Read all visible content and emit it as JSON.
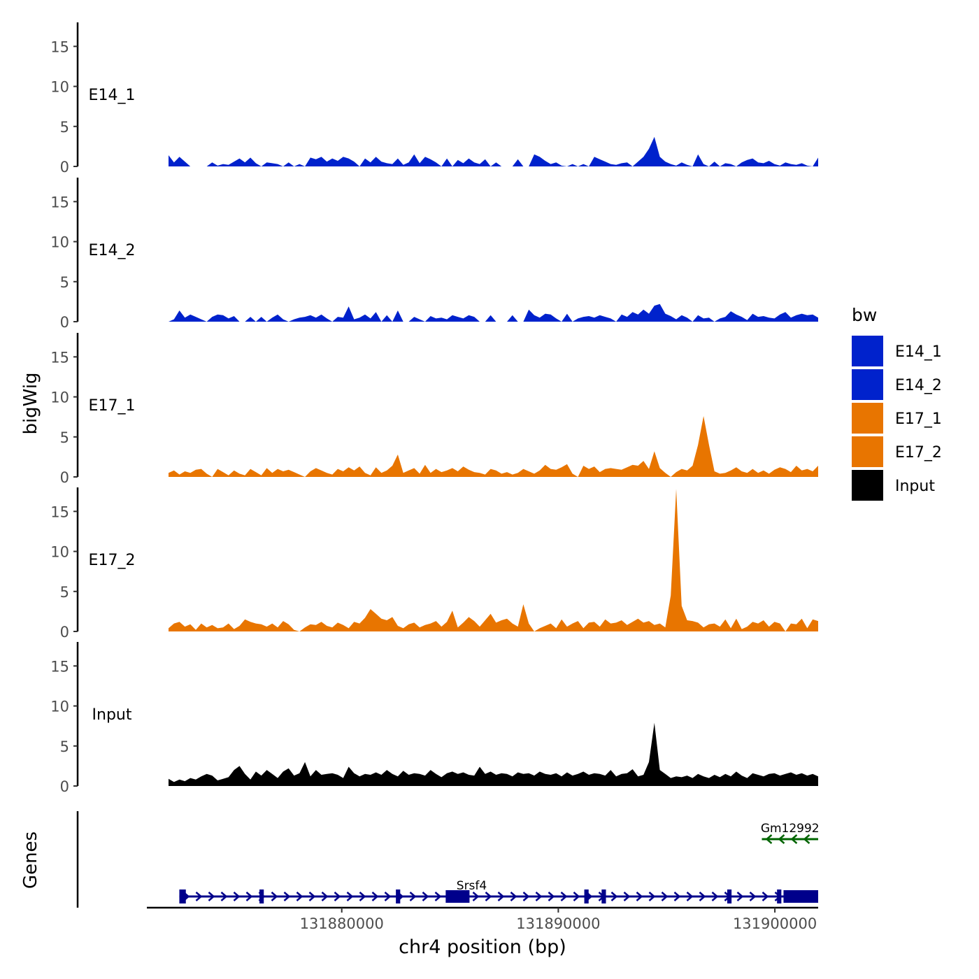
{
  "chart_data": {
    "type": "area",
    "ylabel": "bigWig",
    "genes_label": "Genes",
    "xlabel": "chr4 position (bp)",
    "ylim": [
      0,
      18
    ],
    "yticks": [
      0,
      5,
      10,
      15
    ],
    "xlim": [
      131871000,
      131902000
    ],
    "xticks": [
      131880000,
      131890000,
      131900000
    ],
    "xtick_labels": [
      "131880000",
      "131890000",
      "131900000"
    ],
    "legend": {
      "title": "bw",
      "position": "right",
      "entries": [
        {
          "label": "E14_1",
          "color": "#0022CC"
        },
        {
          "label": "E14_2",
          "color": "#0022CC"
        },
        {
          "label": "E17_1",
          "color": "#E87500"
        },
        {
          "label": "E17_2",
          "color": "#E87500"
        },
        {
          "label": "Input",
          "color": "#000000"
        }
      ]
    },
    "track_x": {
      "start": 131872000,
      "end": 131902000,
      "bins": 120
    },
    "tracks": [
      {
        "name": "E14_1",
        "color": "#0022CC",
        "values": [
          1.4,
          0.5,
          1.2,
          0.6,
          0,
          0,
          0,
          0,
          0.5,
          0.1,
          0.3,
          0.2,
          0.6,
          1.0,
          0.5,
          1.1,
          0.4,
          0,
          0.5,
          0.4,
          0.3,
          0,
          0.5,
          0,
          0.3,
          0,
          1.1,
          0.9,
          1.2,
          0.6,
          1.0,
          0.7,
          1.2,
          1.0,
          0.6,
          0,
          1.0,
          0.5,
          1.2,
          0.6,
          0.4,
          0.3,
          1.0,
          0.2,
          0.5,
          1.5,
          0.4,
          1.2,
          0.9,
          0.5,
          0,
          1.0,
          0,
          0.8,
          0.4,
          1.0,
          0.5,
          0.3,
          0.9,
          0,
          0.5,
          0,
          0,
          0,
          0.9,
          0,
          0,
          1.5,
          1.2,
          0.7,
          0.3,
          0.5,
          0.1,
          0,
          0.3,
          0,
          0.3,
          0,
          1.2,
          0.9,
          0.6,
          0.3,
          0.2,
          0.4,
          0.5,
          0,
          0.6,
          1.2,
          2.2,
          3.7,
          1.2,
          0.6,
          0.3,
          0.1,
          0.5,
          0.2,
          0,
          1.5,
          0.3,
          0,
          0.6,
          0,
          0.4,
          0.3,
          0,
          0.5,
          0.8,
          1.0,
          0.5,
          0.4,
          0.7,
          0.3,
          0.1,
          0.5,
          0.3,
          0.2,
          0.4,
          0.1,
          0,
          1.1
        ]
      },
      {
        "name": "E14_2",
        "color": "#0022CC",
        "values": [
          0,
          0.3,
          1.4,
          0.5,
          0.9,
          0.6,
          0.3,
          0,
          0.6,
          0.9,
          0.8,
          0.4,
          0.7,
          0,
          0,
          0.6,
          0,
          0.6,
          0,
          0.5,
          0.9,
          0.3,
          0,
          0.3,
          0.5,
          0.6,
          0.8,
          0.5,
          0.9,
          0.4,
          0,
          0.6,
          0.5,
          1.9,
          0.3,
          0.5,
          0.9,
          0.4,
          1.2,
          0,
          0.8,
          0,
          1.4,
          0,
          0,
          0.6,
          0.3,
          0,
          0.7,
          0.4,
          0.5,
          0.3,
          0.8,
          0.6,
          0.4,
          0.8,
          0.6,
          0,
          0,
          0.8,
          0,
          0,
          0,
          0.8,
          0,
          0,
          1.5,
          0.8,
          0.5,
          1.0,
          0.9,
          0.4,
          0,
          1.0,
          0,
          0.4,
          0.6,
          0.7,
          0.5,
          0.8,
          0.6,
          0.4,
          0,
          0.9,
          0.6,
          1.2,
          0.9,
          1.5,
          1.0,
          2.0,
          2.2,
          1.0,
          0.7,
          0.3,
          0.8,
          0.5,
          0,
          0.8,
          0.4,
          0.5,
          0,
          0.4,
          0.6,
          1.3,
          0.9,
          0.6,
          0.2,
          1.0,
          0.6,
          0.7,
          0.5,
          0.4,
          0.9,
          1.2,
          0.5,
          0.8,
          1.0,
          0.8,
          0.9,
          0.5
        ]
      },
      {
        "name": "E17_1",
        "color": "#E87500",
        "values": [
          0.5,
          0.8,
          0.3,
          0.7,
          0.5,
          0.9,
          1.0,
          0.4,
          0,
          1.0,
          0.6,
          0.2,
          0.8,
          0.4,
          0.2,
          1.0,
          0.6,
          0.2,
          1.1,
          0.5,
          1.0,
          0.7,
          0.9,
          0.6,
          0.3,
          0,
          0.7,
          1.1,
          0.8,
          0.5,
          0.3,
          1.0,
          0.7,
          1.2,
          0.8,
          1.3,
          0.5,
          0.2,
          1.2,
          0.5,
          0.8,
          1.4,
          2.8,
          0.5,
          0.8,
          1.1,
          0.4,
          1.5,
          0.5,
          1.0,
          0.6,
          0.8,
          1.1,
          0.7,
          1.3,
          0.9,
          0.6,
          0.5,
          0.3,
          1.0,
          0.8,
          0.4,
          0.6,
          0.3,
          0.5,
          1.0,
          0.7,
          0.4,
          0.8,
          1.5,
          1.0,
          0.9,
          1.2,
          1.6,
          0.4,
          0,
          1.4,
          1.0,
          1.3,
          0.6,
          1.0,
          1.1,
          1.0,
          0.9,
          1.2,
          1.5,
          1.4,
          2.0,
          1.0,
          3.2,
          1.1,
          0.5,
          0,
          0.6,
          1.0,
          0.8,
          1.4,
          4.0,
          7.6,
          4.0,
          0.7,
          0.4,
          0.5,
          0.8,
          1.2,
          0.7,
          0.5,
          1.0,
          0.5,
          0.8,
          0.4,
          0.9,
          1.2,
          1.0,
          0.6,
          1.4,
          0.8,
          1.0,
          0.7,
          1.4
        ]
      },
      {
        "name": "E17_2",
        "color": "#E87500",
        "values": [
          0.4,
          1.0,
          1.2,
          0.6,
          0.9,
          0.2,
          1.0,
          0.5,
          0.8,
          0.4,
          0.5,
          1.0,
          0.3,
          0.7,
          1.5,
          1.2,
          1.0,
          0.9,
          0.6,
          1.0,
          0.5,
          1.3,
          0.9,
          0.2,
          0,
          0.5,
          0.9,
          0.8,
          1.2,
          0.7,
          0.5,
          1.1,
          0.8,
          0.4,
          1.2,
          1.0,
          1.7,
          2.8,
          2.2,
          1.6,
          1.4,
          1.8,
          0.7,
          0.4,
          0.9,
          1.1,
          0.5,
          0.8,
          1.0,
          1.3,
          0.6,
          1.2,
          2.6,
          0.5,
          1.1,
          1.8,
          1.3,
          0.6,
          1.4,
          2.2,
          1.1,
          1.4,
          1.6,
          1.0,
          0.6,
          3.4,
          1.0,
          0,
          0.4,
          0.7,
          1.0,
          0.4,
          1.5,
          0.6,
          1.0,
          1.3,
          0.4,
          1.1,
          1.2,
          0.6,
          1.5,
          1.0,
          1.1,
          1.4,
          0.8,
          1.2,
          1.6,
          1.1,
          1.3,
          0.8,
          1.0,
          0.5,
          4.5,
          17.8,
          3.2,
          1.4,
          1.3,
          1.1,
          0.5,
          0.9,
          1.0,
          0.6,
          1.5,
          0.4,
          1.6,
          0.3,
          0.6,
          1.2,
          1.0,
          1.4,
          0.6,
          1.2,
          1.0,
          0,
          1.0,
          0.9,
          1.6,
          0.4,
          1.5,
          1.3
        ]
      },
      {
        "name": "Input",
        "color": "#000000",
        "values": [
          0.9,
          0.5,
          0.8,
          0.6,
          1.0,
          0.8,
          1.2,
          1.5,
          1.3,
          0.7,
          0.9,
          1.1,
          2.0,
          2.5,
          1.5,
          0.8,
          1.8,
          1.3,
          2.0,
          1.5,
          1.0,
          1.8,
          2.2,
          1.3,
          1.6,
          3.0,
          1.2,
          2.0,
          1.4,
          1.5,
          1.6,
          1.4,
          1.0,
          2.4,
          1.6,
          1.2,
          1.5,
          1.4,
          1.7,
          1.4,
          2.0,
          1.5,
          1.2,
          1.9,
          1.4,
          1.6,
          1.5,
          1.3,
          2.0,
          1.5,
          1.1,
          1.6,
          1.8,
          1.5,
          1.7,
          1.4,
          1.3,
          2.4,
          1.5,
          1.8,
          1.4,
          1.6,
          1.5,
          1.2,
          1.7,
          1.5,
          1.6,
          1.3,
          1.8,
          1.5,
          1.4,
          1.6,
          1.2,
          1.7,
          1.3,
          1.5,
          1.8,
          1.4,
          1.6,
          1.5,
          1.3,
          2.0,
          1.2,
          1.5,
          1.6,
          2.1,
          1.2,
          1.4,
          3.0,
          7.9,
          2.0,
          1.5,
          1.0,
          1.2,
          1.1,
          1.3,
          1.0,
          1.5,
          1.2,
          1.0,
          1.4,
          1.1,
          1.5,
          1.2,
          1.8,
          1.3,
          1.0,
          1.6,
          1.4,
          1.2,
          1.5,
          1.6,
          1.3,
          1.5,
          1.7,
          1.4,
          1.6,
          1.3,
          1.5,
          1.2
        ]
      }
    ],
    "genes": [
      {
        "name": "Srsf4",
        "start": 131872500,
        "end": 131902000,
        "strand": "+",
        "color": "#00008B",
        "lane": 2,
        "exons": [
          [
            131872500,
            131872800
          ],
          [
            131876200,
            131876400
          ],
          [
            131882500,
            131882700
          ],
          [
            131884800,
            131885900
          ],
          [
            131891200,
            131891400
          ],
          [
            131892000,
            131892200
          ],
          [
            131897800,
            131898000
          ],
          [
            131900100,
            131900300
          ],
          [
            131900400,
            131902000
          ]
        ]
      },
      {
        "name": "Gm12992",
        "start": 131899400,
        "end": 131902000,
        "strand": "-",
        "color": "#006400",
        "lane": 1,
        "exons": []
      }
    ]
  }
}
